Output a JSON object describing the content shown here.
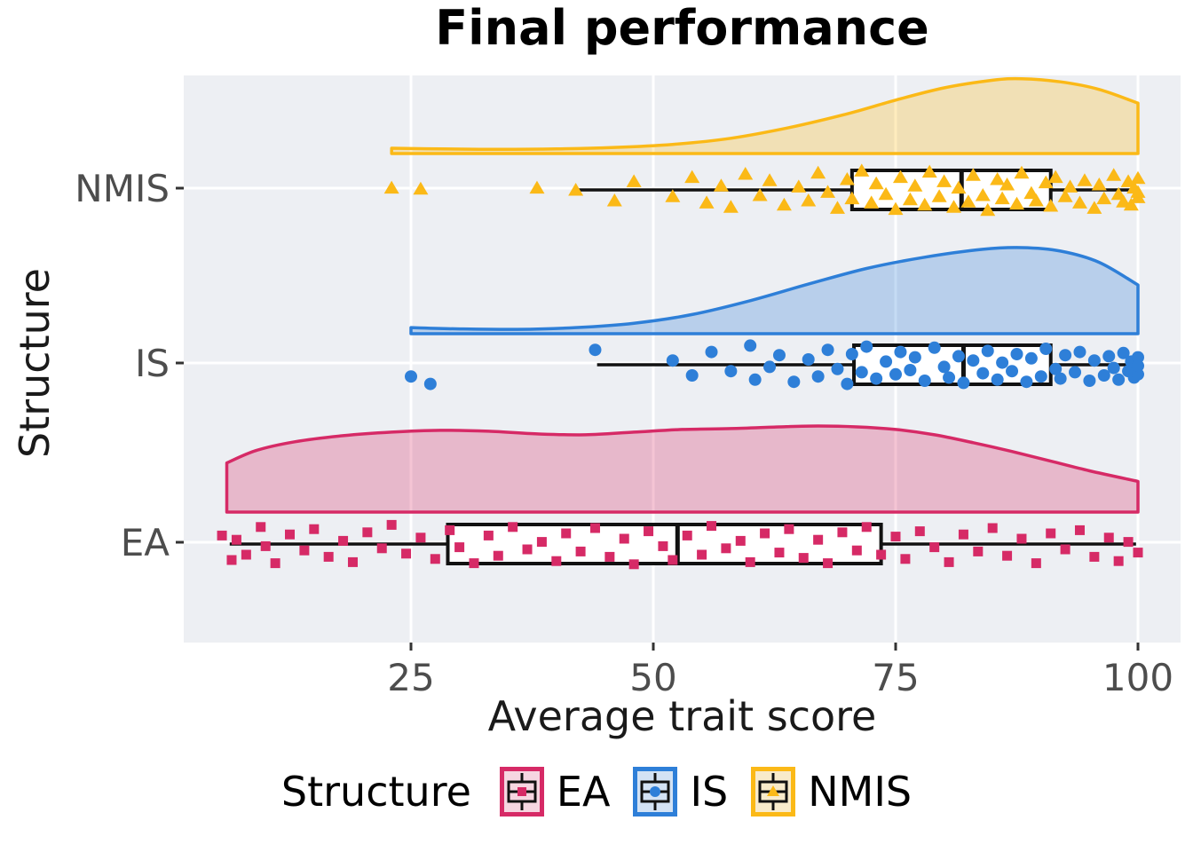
{
  "title": "Final performance",
  "axes": {
    "x_title": "Average trait score",
    "y_title": "Structure",
    "x_ticks": [
      "25",
      "50",
      "75",
      "100"
    ],
    "y_categories": [
      "NMIS",
      "IS",
      "EA"
    ]
  },
  "legend": {
    "title": "Structure",
    "items": [
      {
        "label": "EA",
        "marker": "square",
        "color": "#D62A66",
        "fill": "#F6D6E1"
      },
      {
        "label": "IS",
        "marker": "circle",
        "color": "#2E7FD8",
        "fill": "#D3E2F4"
      },
      {
        "label": "NMIS",
        "marker": "triangle",
        "color": "#FBB917",
        "fill": "#F8EBCB"
      }
    ]
  },
  "colors": {
    "panel_background": "#EDEFF3",
    "gridline": "#FFFFFF",
    "tick_label": "#4D4D4D",
    "axis_title": "#1A1A1A",
    "box_stroke": "#111111"
  },
  "chart_data": {
    "type": "raincloud (half-violin density + boxplot + jittered points)",
    "title": "Final performance",
    "xlabel": "Average trait score",
    "ylabel": "Structure",
    "x_ticks": [
      25,
      50,
      75,
      100
    ],
    "xlim": [
      1.5,
      104.5
    ],
    "grid": "white major gridlines on gray panel",
    "legend_position": "bottom",
    "categories": [
      "NMIS",
      "IS",
      "EA"
    ],
    "series": [
      {
        "name": "NMIS",
        "marker": "triangle",
        "color": "#FBB917",
        "box": {
          "whisker_low": 42,
          "q1": 70.5,
          "median": 81.8,
          "q3": 91,
          "whisker_high": 99.8
        },
        "density_profile": [
          [
            23,
            0.07
          ],
          [
            28,
            0.06
          ],
          [
            34,
            0.055
          ],
          [
            40,
            0.06
          ],
          [
            46,
            0.08
          ],
          [
            52,
            0.12
          ],
          [
            58,
            0.2
          ],
          [
            64,
            0.34
          ],
          [
            70,
            0.52
          ],
          [
            75,
            0.7
          ],
          [
            80,
            0.86
          ],
          [
            85,
            0.96
          ],
          [
            88,
            0.98
          ],
          [
            92,
            0.94
          ],
          [
            96,
            0.84
          ],
          [
            100,
            0.66
          ]
        ],
        "points": [
          [
            23,
            -0.1
          ],
          [
            26,
            -0.05
          ],
          [
            38,
            -0.1
          ],
          [
            42,
            0
          ],
          [
            46,
            0.5
          ],
          [
            48,
            -0.4
          ],
          [
            52,
            0.3
          ],
          [
            54,
            -0.6
          ],
          [
            55.5,
            0.6
          ],
          [
            57,
            -0.2
          ],
          [
            58,
            0.8
          ],
          [
            59.5,
            -0.75
          ],
          [
            61,
            0.25
          ],
          [
            62,
            -0.45
          ],
          [
            63.5,
            0.7
          ],
          [
            65,
            -0.15
          ],
          [
            66,
            0.5
          ],
          [
            67,
            -0.8
          ],
          [
            68,
            0.1
          ],
          [
            69,
            0.85
          ],
          [
            70,
            -0.5
          ],
          [
            70.5,
            0.4
          ],
          [
            71.5,
            -0.9
          ],
          [
            72.5,
            0.6
          ],
          [
            73,
            -0.3
          ],
          [
            74,
            0.2
          ],
          [
            75,
            0.9
          ],
          [
            75.5,
            -0.6
          ],
          [
            76.5,
            0.45
          ],
          [
            77,
            -0.2
          ],
          [
            78,
            0.7
          ],
          [
            78.5,
            -0.85
          ],
          [
            79.5,
            0.3
          ],
          [
            80,
            -0.4
          ],
          [
            81,
            0.8
          ],
          [
            81.5,
            -0.1
          ],
          [
            82.5,
            0.55
          ],
          [
            83,
            -0.7
          ],
          [
            84,
            0.25
          ],
          [
            84.5,
            0.95
          ],
          [
            85.5,
            -0.5
          ],
          [
            86,
            0.4
          ],
          [
            86.5,
            -0.25
          ],
          [
            87.5,
            0.65
          ],
          [
            88,
            -0.8
          ],
          [
            89,
            0.15
          ],
          [
            89.5,
            0.5
          ],
          [
            90.5,
            -0.35
          ],
          [
            91,
            0.75
          ],
          [
            91.5,
            -0.6
          ],
          [
            92.5,
            0.3
          ],
          [
            93,
            -0.15
          ],
          [
            94,
            0.6
          ],
          [
            94.5,
            -0.45
          ],
          [
            95.5,
            0.85
          ],
          [
            96,
            -0.25
          ],
          [
            96.5,
            0.4
          ],
          [
            97.5,
            -0.7
          ],
          [
            98,
            0.2
          ],
          [
            98.5,
            0.55
          ],
          [
            99,
            -0.4
          ],
          [
            99.3,
            0.7
          ],
          [
            99.6,
            -0.1
          ],
          [
            100,
            0.35
          ],
          [
            100,
            -0.55
          ],
          [
            100,
            0.1
          ]
        ]
      },
      {
        "name": "IS",
        "marker": "circle",
        "color": "#2E7FD8",
        "box": {
          "whisker_low": 44.2,
          "q1": 70.7,
          "median": 82,
          "q3": 91,
          "whisker_high": 99.8
        },
        "density_profile": [
          [
            25,
            0.07
          ],
          [
            30,
            0.055
          ],
          [
            36,
            0.05
          ],
          [
            42,
            0.07
          ],
          [
            48,
            0.12
          ],
          [
            54,
            0.22
          ],
          [
            60,
            0.38
          ],
          [
            66,
            0.57
          ],
          [
            72,
            0.75
          ],
          [
            78,
            0.88
          ],
          [
            84,
            0.97
          ],
          [
            88,
            0.99
          ],
          [
            92,
            0.95
          ],
          [
            96,
            0.82
          ],
          [
            100,
            0.56
          ]
        ],
        "points": [
          [
            25,
            0.55
          ],
          [
            27,
            0.9
          ],
          [
            44,
            -0.7
          ],
          [
            52,
            -0.2
          ],
          [
            54,
            0.5
          ],
          [
            56,
            -0.6
          ],
          [
            58,
            0.3
          ],
          [
            60,
            -0.9
          ],
          [
            60.5,
            0.7
          ],
          [
            62,
            0.1
          ],
          [
            63,
            -0.45
          ],
          [
            64.5,
            0.8
          ],
          [
            66,
            -0.25
          ],
          [
            67,
            0.55
          ],
          [
            68,
            -0.7
          ],
          [
            69,
            0.2
          ],
          [
            70,
            0.9
          ],
          [
            70.5,
            -0.5
          ],
          [
            71.5,
            0.35
          ],
          [
            72,
            -0.85
          ],
          [
            73,
            0.65
          ],
          [
            74,
            -0.15
          ],
          [
            75,
            0.45
          ],
          [
            75.5,
            -0.6
          ],
          [
            76.5,
            0.25
          ],
          [
            77,
            -0.35
          ],
          [
            78,
            0.75
          ],
          [
            79,
            -0.8
          ],
          [
            80,
            0.1
          ],
          [
            80.5,
            0.6
          ],
          [
            81.5,
            -0.4
          ],
          [
            82,
            0.85
          ],
          [
            83,
            -0.2
          ],
          [
            84,
            0.4
          ],
          [
            84.5,
            -0.65
          ],
          [
            85.5,
            0.7
          ],
          [
            86,
            -0.1
          ],
          [
            87,
            0.3
          ],
          [
            87.5,
            -0.5
          ],
          [
            88.5,
            0.8
          ],
          [
            89,
            -0.3
          ],
          [
            90,
            0.55
          ],
          [
            90.5,
            -0.75
          ],
          [
            91.5,
            0.2
          ],
          [
            92,
            0.65
          ],
          [
            92.5,
            -0.45
          ],
          [
            93.5,
            0.35
          ],
          [
            94,
            -0.6
          ],
          [
            95,
            0.75
          ],
          [
            95.5,
            -0.2
          ],
          [
            96.5,
            0.5
          ],
          [
            97,
            -0.4
          ],
          [
            97.5,
            0.15
          ],
          [
            98,
            0.7
          ],
          [
            98.5,
            -0.55
          ],
          [
            99,
            0.3
          ],
          [
            99.3,
            -0.15
          ],
          [
            99.6,
            0.6
          ],
          [
            100,
            -0.35
          ],
          [
            100,
            0.45
          ],
          [
            100,
            0.05
          ]
        ]
      },
      {
        "name": "EA",
        "marker": "square",
        "color": "#D62A66",
        "box": {
          "whisker_low": 6.3,
          "q1": 28.8,
          "median": 52.5,
          "q3": 73.5,
          "whisker_high": 99.8
        },
        "density_profile": [
          [
            6,
            0.56
          ],
          [
            9,
            0.7
          ],
          [
            13,
            0.8
          ],
          [
            18,
            0.87
          ],
          [
            23,
            0.91
          ],
          [
            28,
            0.93
          ],
          [
            33,
            0.92
          ],
          [
            38,
            0.89
          ],
          [
            43,
            0.88
          ],
          [
            48,
            0.91
          ],
          [
            53,
            0.94
          ],
          [
            58,
            0.95
          ],
          [
            63,
            0.97
          ],
          [
            67,
            0.98
          ],
          [
            71,
            0.97
          ],
          [
            75,
            0.94
          ],
          [
            79,
            0.88
          ],
          [
            83,
            0.79
          ],
          [
            87,
            0.69
          ],
          [
            91,
            0.58
          ],
          [
            95,
            0.47
          ],
          [
            100,
            0.35
          ]
        ],
        "points": [
          [
            5.5,
            -0.4
          ],
          [
            6.5,
            0.75
          ],
          [
            7,
            -0.2
          ],
          [
            8,
            0.5
          ],
          [
            9.5,
            -0.8
          ],
          [
            10,
            0.1
          ],
          [
            11,
            0.9
          ],
          [
            12.5,
            -0.45
          ],
          [
            14,
            0.3
          ],
          [
            15,
            -0.7
          ],
          [
            16.5,
            0.6
          ],
          [
            18,
            -0.15
          ],
          [
            19,
            0.85
          ],
          [
            20.5,
            -0.55
          ],
          [
            22,
            0.2
          ],
          [
            23,
            -0.9
          ],
          [
            24.5,
            0.45
          ],
          [
            26,
            -0.3
          ],
          [
            27.5,
            0.7
          ],
          [
            29,
            -0.65
          ],
          [
            30,
            0.15
          ],
          [
            31.5,
            0.9
          ],
          [
            33,
            -0.4
          ],
          [
            34,
            0.55
          ],
          [
            35.5,
            -0.8
          ],
          [
            37,
            0.25
          ],
          [
            38.5,
            -0.1
          ],
          [
            40,
            0.8
          ],
          [
            41,
            -0.5
          ],
          [
            42.5,
            0.35
          ],
          [
            44,
            -0.75
          ],
          [
            45.5,
            0.6
          ],
          [
            47,
            -0.25
          ],
          [
            48,
            0.95
          ],
          [
            49.5,
            -0.6
          ],
          [
            51,
            0.1
          ],
          [
            52,
            0.75
          ],
          [
            53.5,
            -0.4
          ],
          [
            55,
            0.5
          ],
          [
            56,
            -0.85
          ],
          [
            57.5,
            0.2
          ],
          [
            59,
            -0.15
          ],
          [
            60,
            0.85
          ],
          [
            61.5,
            -0.5
          ],
          [
            63,
            0.4
          ],
          [
            64,
            -0.7
          ],
          [
            65.5,
            0.65
          ],
          [
            67,
            -0.2
          ],
          [
            68,
            0.9
          ],
          [
            69.5,
            -0.55
          ],
          [
            71,
            0.3
          ],
          [
            72,
            -0.8
          ],
          [
            73.5,
            0.5
          ],
          [
            75,
            -0.35
          ],
          [
            76,
            0.7
          ],
          [
            77.5,
            -0.6
          ],
          [
            79,
            0.15
          ],
          [
            80.5,
            0.85
          ],
          [
            82,
            -0.45
          ],
          [
            83.5,
            0.35
          ],
          [
            85,
            -0.75
          ],
          [
            86.5,
            0.55
          ],
          [
            88,
            -0.25
          ],
          [
            89.5,
            0.9
          ],
          [
            91,
            -0.5
          ],
          [
            92.5,
            0.25
          ],
          [
            94,
            -0.65
          ],
          [
            95.5,
            0.6
          ],
          [
            97,
            -0.3
          ],
          [
            98,
            0.8
          ],
          [
            99,
            -0.1
          ],
          [
            100,
            0.4
          ]
        ]
      }
    ]
  }
}
